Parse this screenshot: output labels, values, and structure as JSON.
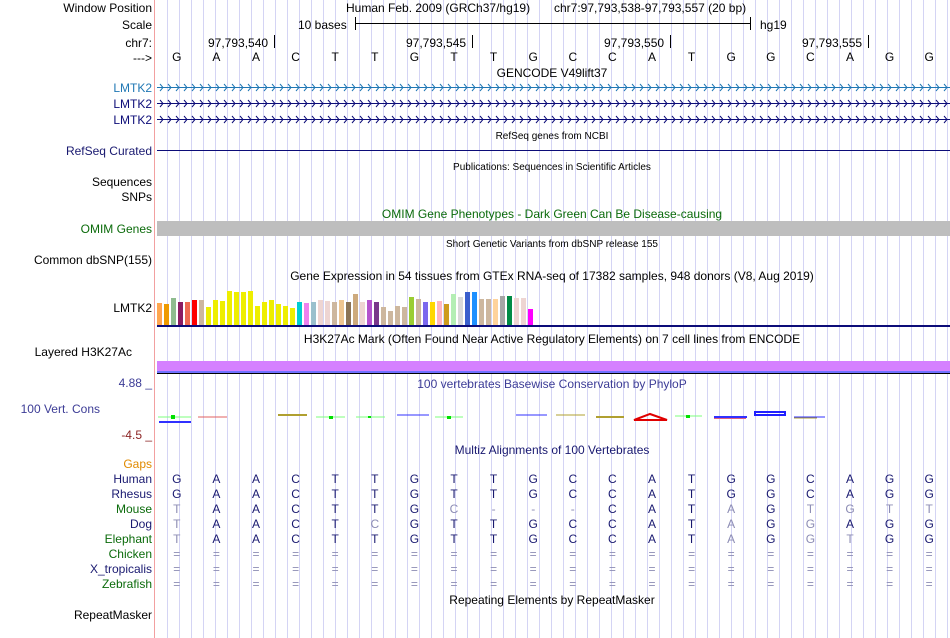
{
  "labels": {
    "window_position": "Window Position",
    "scale": "Scale",
    "chr": "chr7:",
    "arrow": "--->",
    "gencode": [
      "LMTK2",
      "LMTK2",
      "LMTK2"
    ],
    "refseq": "RefSeq Curated",
    "sequences": "Sequences",
    "snps": "SNPs",
    "omim": "OMIM Genes",
    "dbsnp": "Common dbSNP(155)",
    "gtex": "LMTK2",
    "h3k27ac": "Layered H3K27Ac",
    "cons_max": "4.88 _",
    "cons": "100 Vert. Cons",
    "cons_min": "-4.5 _",
    "gaps": "Gaps",
    "species": [
      {
        "name": "Human",
        "color": "#191970"
      },
      {
        "name": "Rhesus",
        "color": "#191970"
      },
      {
        "name": "Mouse",
        "color": "#0b6b0b"
      },
      {
        "name": "Dog",
        "color": "#191970"
      },
      {
        "name": "Elephant",
        "color": "#0b6b0b"
      },
      {
        "name": "Chicken",
        "color": "#0b6b0b"
      },
      {
        "name": "X_tropicalis",
        "color": "#191970"
      },
      {
        "name": "Zebrafish",
        "color": "#0b6b0b"
      }
    ],
    "repeatmasker": "RepeatMasker"
  },
  "header": {
    "assembly": "Human Feb. 2009 (GRCh37/hg19)",
    "position": "chr7:97,793,538-97,793,557 (20 bp)",
    "scale_label": "10 bases",
    "scale_db": "hg19",
    "ruler": [
      "97,793,540",
      "97,793,545",
      "97,793,550",
      "97,793,555"
    ],
    "sequence": [
      "G",
      "A",
      "A",
      "C",
      "T",
      "T",
      "G",
      "T",
      "T",
      "G",
      "C",
      "C",
      "A",
      "T",
      "G",
      "G",
      "C",
      "A",
      "G",
      "G"
    ]
  },
  "tracks": {
    "gencode_title": "GENCODE V49lift37",
    "refseq_title": "RefSeq genes from NCBI",
    "publications_title": "Publications: Sequences in Scientific Articles",
    "omim_title": "OMIM Gene Phenotypes - Dark Green Can Be Disease-causing",
    "dbsnp_title": "Short Genetic Variants from dbSNP release 155",
    "gtex_title": "Gene Expression in 54 tissues from GTEx RNA-seq of 17382 samples, 948 donors (V8, Aug 2019)",
    "h3k27ac_title": "H3K27Ac Mark (Often Found Near Active Regulatory Elements) on 7 cell lines from ENCODE",
    "cons_title": "100 vertebrates Basewise Conservation by PhyloP",
    "multiz_title": "Multiz Alignments of 100 Vertebrates",
    "repeatmasker_title": "Repeating Elements by RepeatMasker"
  },
  "colors": {
    "gencode_top": "#1f77b4",
    "gencode": "#0c0c78",
    "refseq": "#0c0c78",
    "omim_bar": "#bebebe",
    "h3k27ac": "#d580ff",
    "h3k27ac_line": "#7070ff",
    "navy": "#191970"
  },
  "gtex": {
    "relative_levels": [
      0.53,
      0.52,
      0.65,
      0.57,
      0.57,
      0.6,
      0.6,
      0.45,
      0.6,
      0.58,
      0.82,
      0.8,
      0.8,
      0.83,
      0.47,
      0.55,
      0.6,
      0.5,
      0.46,
      0.41,
      0.55,
      0.53,
      0.55,
      0.6,
      0.58,
      0.57,
      0.6,
      0.56,
      0.75,
      0.55,
      0.6,
      0.57,
      0.44,
      0.33,
      0.47,
      0.43,
      0.68,
      0.64,
      0.57,
      0.57,
      0.58,
      0.52,
      0.75,
      0.69,
      0.8,
      0.8,
      0.64,
      0.63,
      0.63,
      0.7,
      0.7,
      0.65,
      0.67,
      0.4
    ],
    "colors": [
      "#ffa54f",
      "#ee9a00",
      "#8fbc8f",
      "#8b1c62",
      "#ee6a50",
      "#ff0000",
      "#cdb79e",
      "#eeee00",
      "#eeee00",
      "#eeee00",
      "#eeee00",
      "#eeee00",
      "#eeee00",
      "#eeee00",
      "#eeee00",
      "#eeee00",
      "#eeee00",
      "#eeee00",
      "#eeee00",
      "#eeee00",
      "#00ced1",
      "#ee82ee",
      "#9ac0cd",
      "#eed5d2",
      "#eed5d2",
      "#cdb79e",
      "#eec591",
      "#8b7355",
      "#cdaa7d",
      "#eed5d2",
      "#b452cd",
      "#7a378b",
      "#cdb79e",
      "#cdb79e",
      "#cdb79e",
      "#cdb79e",
      "#9acd32",
      "#cdb79e",
      "#7b68ee",
      "#ffd700",
      "#ffb6c1",
      "#cd9b1d",
      "#b4eeb4",
      "#d9d9d9",
      "#3a5fcd",
      "#1e90ff",
      "#cdb79e",
      "#cdb79e",
      "#ffd39b",
      "#a6a6a6",
      "#008b45",
      "#eed5d2",
      "#eed5d2",
      "#ff00ff"
    ]
  },
  "alignment": {
    "Human": {
      "bases": [
        "G",
        "A",
        "A",
        "C",
        "T",
        "T",
        "G",
        "T",
        "T",
        "G",
        "C",
        "C",
        "A",
        "T",
        "G",
        "G",
        "C",
        "A",
        "G",
        "G"
      ],
      "faded": []
    },
    "Rhesus": {
      "bases": [
        "G",
        "A",
        "A",
        "C",
        "T",
        "T",
        "G",
        "T",
        "T",
        "G",
        "C",
        "C",
        "A",
        "T",
        "G",
        "G",
        "C",
        "A",
        "G",
        "G"
      ],
      "faded": []
    },
    "Mouse": {
      "bases": [
        "T",
        "A",
        "A",
        "C",
        "T",
        "T",
        "G",
        "C",
        "-",
        "-",
        "-",
        "C",
        "A",
        "T",
        "A",
        "G",
        "T",
        "G",
        "T",
        "T"
      ],
      "faded": [
        0,
        7,
        8,
        9,
        10,
        14,
        16,
        17,
        18,
        19
      ]
    },
    "Dog": {
      "bases": [
        "T",
        "A",
        "A",
        "C",
        "T",
        "C",
        "G",
        "T",
        "T",
        "G",
        "C",
        "C",
        "A",
        "T",
        "A",
        "G",
        "G",
        "A",
        "G",
        "G"
      ],
      "faded": [
        0,
        5,
        14,
        16
      ]
    },
    "Elephant": {
      "bases": [
        "T",
        "A",
        "A",
        "C",
        "T",
        "T",
        "G",
        "T",
        "T",
        "G",
        "C",
        "C",
        "A",
        "T",
        "A",
        "G",
        "G",
        "T",
        "G",
        "G"
      ],
      "faded": [
        0,
        14,
        16,
        17
      ]
    },
    "Chicken": {
      "bases": [
        "=",
        "=",
        "=",
        "=",
        "=",
        "=",
        "=",
        "=",
        "=",
        "=",
        "=",
        "=",
        "=",
        "=",
        "=",
        "=",
        "=",
        "=",
        "=",
        "="
      ],
      "faded": "all"
    },
    "X_tropicalis": {
      "bases": [
        "=",
        "=",
        "=",
        "=",
        "=",
        "=",
        "=",
        "=",
        "=",
        "=",
        "=",
        "=",
        "=",
        "=",
        "=",
        "=",
        "=",
        "=",
        "=",
        "="
      ],
      "faded": "all"
    },
    "Zebrafish": {
      "bases": [
        "=",
        "=",
        "=",
        "=",
        "=",
        "=",
        "=",
        "=",
        "=",
        "=",
        "=",
        "=",
        "=",
        "=",
        "=",
        "=",
        "=",
        "=",
        "=",
        "="
      ],
      "faded": "all"
    }
  }
}
